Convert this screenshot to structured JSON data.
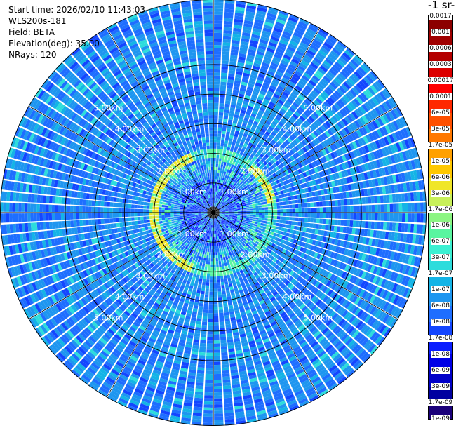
{
  "info": {
    "start_time": "Start time: 2026/02/10 11:43:03",
    "instrument": "WLS200s-181",
    "field": "Field: BETA",
    "elevation": "Elevation(deg): 35.00",
    "nrays": "NRays: 120"
  },
  "colorbar": {
    "unit_label": "-1 sr-",
    "colors": [
      "#1a007a",
      "#0000a0",
      "#0000c8",
      "#0000e6",
      "#0a1eff",
      "#1446ff",
      "#1e6eff",
      "#1e96f0",
      "#14b4e6",
      "#2ddcdc",
      "#3cf0d2",
      "#5af5a0",
      "#8cf582",
      "#c8f05a",
      "#f0e628",
      "#ffc800",
      "#ffa000",
      "#ff7800",
      "#ff5000",
      "#ff2800",
      "#ff0000",
      "#dc0000",
      "#b40000",
      "#a00000",
      "#8c0000"
    ],
    "tick_labels": [
      "1e-09",
      "1.7e-09",
      "3e-09",
      "6e-09",
      "1e-08",
      "1.7e-08",
      "3e-08",
      "6e-08",
      "1e-07",
      "1.7e-07",
      "3e-07",
      "6e-07",
      "1e-06",
      "1.7e-06",
      "3e-06",
      "6e-06",
      "1e-05",
      "1.7e-05",
      "3e-05",
      "6e-05",
      "0.0001",
      "0.00017",
      "0.0003",
      "0.0006",
      "0.001",
      "0.0017"
    ]
  },
  "ring_labels": [
    "1.00km",
    "2.00km",
    "3.00km",
    "4.00km",
    "5.00km"
  ],
  "chart_data": {
    "type": "heatmap",
    "projection": "polar PPI",
    "nrays": 120,
    "max_range_km": 7.2,
    "range_rings_km": [
      1,
      2,
      3,
      4,
      5
    ],
    "range_ring_labels": [
      "1.00km",
      "2.00km",
      "3.00km",
      "4.00km",
      "5.00km"
    ],
    "radial_spokes_deg": [
      0,
      30,
      60,
      90,
      120,
      150,
      180,
      210,
      240,
      270,
      300,
      330
    ],
    "colorbar_ticks": [
      "1e-09",
      "1.7e-09",
      "3e-09",
      "6e-09",
      "1e-08",
      "1.7e-08",
      "3e-08",
      "6e-08",
      "1e-07",
      "1.7e-07",
      "3e-07",
      "6e-07",
      "1e-06",
      "1.7e-06",
      "3e-06",
      "6e-06",
      "1e-05",
      "1.7e-05",
      "3e-05",
      "6e-05",
      "0.0001",
      "0.00017",
      "0.0003",
      "0.0006",
      "0.001",
      "0.0017"
    ],
    "field_description": "BETA",
    "typical_value": "6e-08",
    "bright_ring_range_km": [
      1.9,
      2.15
    ],
    "bright_ring_value": "1.7e-05"
  }
}
